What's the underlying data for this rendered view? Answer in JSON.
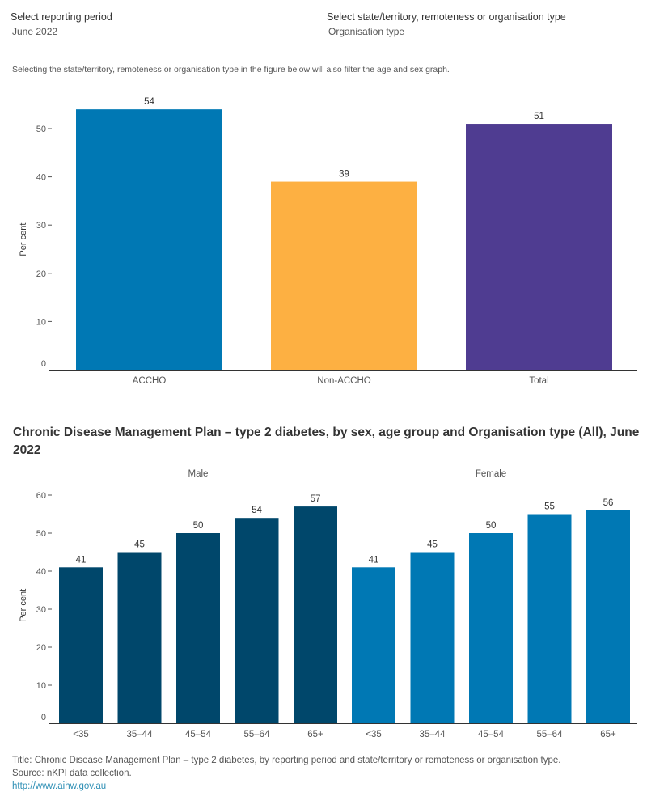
{
  "filters": {
    "reporting_period": {
      "label": "Select reporting period",
      "value": "June 2022"
    },
    "grouping": {
      "label": "Select state/territory, remoteness or organisation type",
      "value": "Organisation type"
    }
  },
  "note": "Selecting the state/territory, remoteness or organisation type in the figure below will also filter the age and sex graph.",
  "chart2_title": "Chronic Disease Management Plan – type 2 diabetes, by sex, age group and Organisation type (All), June 2022",
  "footer": {
    "title_line": "Title: Chronic Disease Management Plan – type 2 diabetes, by reporting period and state/territory or remoteness or organisation type.",
    "source_line": "Source: nKPI data collection.",
    "link": "http://www.aihw.gov.au"
  },
  "chart_data": [
    {
      "type": "bar",
      "title": "",
      "xlabel": "",
      "ylabel": "Per cent",
      "ylim": [
        0,
        54
      ],
      "yticks": [
        0,
        10,
        20,
        30,
        40,
        50
      ],
      "categories": [
        "ACCHO",
        "Non-ACCHO",
        "Total"
      ],
      "values": [
        54,
        39,
        51
      ],
      "colors": [
        "#0078b4",
        "#fdb042",
        "#4f3c91"
      ],
      "data_labels": [
        "54",
        "39",
        "51"
      ],
      "grid": false
    },
    {
      "type": "bar",
      "title": "Chronic Disease Management Plan – type 2 diabetes, by sex, age group and Organisation type (All), June 2022",
      "xlabel": "",
      "ylabel": "Per cent",
      "ylim": [
        0,
        60
      ],
      "yticks": [
        0,
        10,
        20,
        30,
        40,
        50,
        60
      ],
      "panels": [
        "Male",
        "Female"
      ],
      "categories": [
        "<35",
        "35–44",
        "45–54",
        "55–64",
        "65+"
      ],
      "series": [
        {
          "name": "Male",
          "values": [
            41,
            45,
            50,
            54,
            57
          ],
          "color": "#00476b"
        },
        {
          "name": "Female",
          "values": [
            41,
            45,
            50,
            55,
            56
          ],
          "color": "#0078b4"
        }
      ],
      "grid": false
    }
  ]
}
